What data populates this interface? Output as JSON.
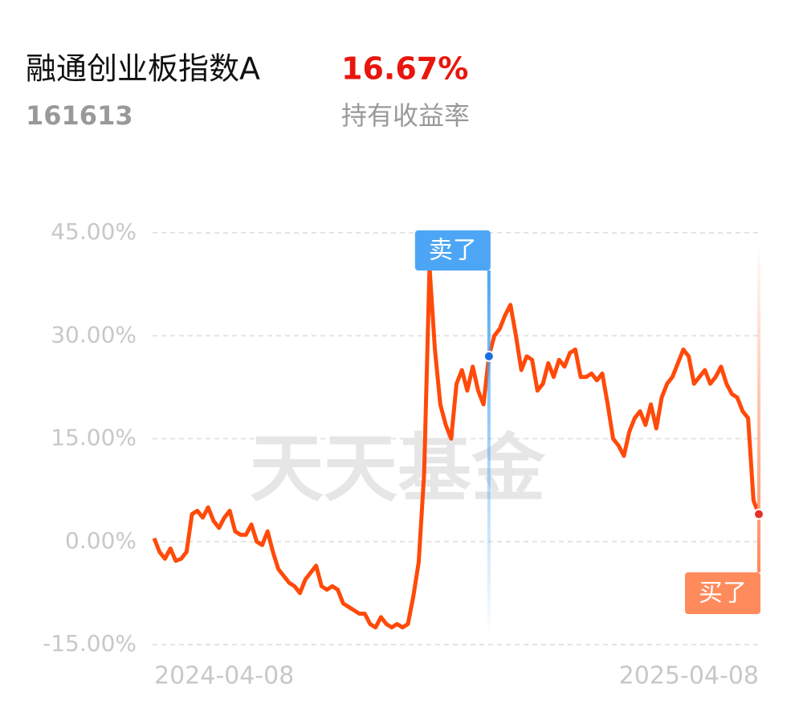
{
  "header": {
    "name": "融通创业板指数A",
    "code": "161613",
    "return": "16.67%",
    "return_label": "持有收益率",
    "watermark": "天天基金"
  },
  "chart_data": {
    "type": "line",
    "categories": [
      "2024-04-08",
      null,
      null,
      null,
      null,
      null,
      null,
      null,
      null,
      null,
      null,
      null,
      null,
      null,
      null,
      null,
      null,
      null,
      null,
      null,
      null,
      null,
      null,
      null,
      null,
      null,
      null,
      null,
      null,
      null,
      null,
      null,
      null,
      null,
      null,
      null,
      null,
      null,
      null,
      null,
      null,
      null,
      null,
      null,
      null,
      null,
      null,
      null,
      null,
      null,
      null,
      null,
      null,
      null,
      null,
      null,
      null,
      null,
      null,
      null,
      null,
      null,
      null,
      null,
      null,
      null,
      null,
      null,
      null,
      null,
      null,
      null,
      null,
      null,
      null,
      null,
      null,
      null,
      null,
      null,
      null,
      null,
      null,
      null,
      null,
      null,
      null,
      null,
      null,
      null,
      null,
      null,
      null,
      null,
      null,
      null,
      null,
      null,
      null,
      null,
      null,
      null,
      null,
      null,
      null,
      null,
      null,
      null,
      null,
      null,
      null,
      null,
      "2025-04-08"
    ],
    "series": [
      {
        "color": "#ff4a0a",
        "values": [
          0.5,
          -1.5,
          -2.5,
          -1,
          -2.8,
          -2.5,
          -1.5,
          4,
          4.5,
          3.5,
          5,
          3,
          2,
          3.5,
          4.5,
          1.5,
          1,
          1,
          2.5,
          0,
          -0.5,
          1.5,
          -1.5,
          -4,
          -5,
          -6,
          -6.5,
          -7.5,
          -5.5,
          -4.5,
          -3.5,
          -6.5,
          -7,
          -6.5,
          -7,
          -9,
          -9.5,
          -10,
          -10.5,
          -10.5,
          -12,
          -12.5,
          -11,
          -12,
          -12.5,
          -12,
          -12.5,
          -12,
          -8,
          -3,
          10,
          40,
          28,
          20,
          17,
          15,
          23,
          25,
          22,
          25.5,
          22,
          20,
          27,
          30,
          31,
          33,
          34.5,
          30,
          25,
          27,
          26.5,
          22,
          23,
          26,
          24,
          26.5,
          25.5,
          27.5,
          28,
          24,
          24,
          24.5,
          23.5,
          24.5,
          20,
          15,
          14,
          12.5,
          16,
          18,
          19,
          17,
          20,
          16.5,
          21,
          23,
          24,
          26,
          28,
          27,
          23,
          24,
          25,
          23,
          24,
          25.5,
          23,
          21.5,
          21,
          19,
          18,
          6,
          4
        ]
      }
    ],
    "ylim": [
      -15,
      45
    ],
    "yticks": [
      {
        "value": -15,
        "label": "-15.00%"
      },
      {
        "value": 0,
        "label": "0.00%"
      },
      {
        "value": 15,
        "label": "15.00%"
      },
      {
        "value": 30,
        "label": "30.00%"
      },
      {
        "value": 45,
        "label": "45.00%"
      }
    ],
    "grid": true,
    "annotations": [
      {
        "label": "卖了",
        "index": 62,
        "color": "#4da6f5"
      },
      {
        "label": "买了",
        "index": 112,
        "color": "#ff8a5c"
      }
    ]
  }
}
